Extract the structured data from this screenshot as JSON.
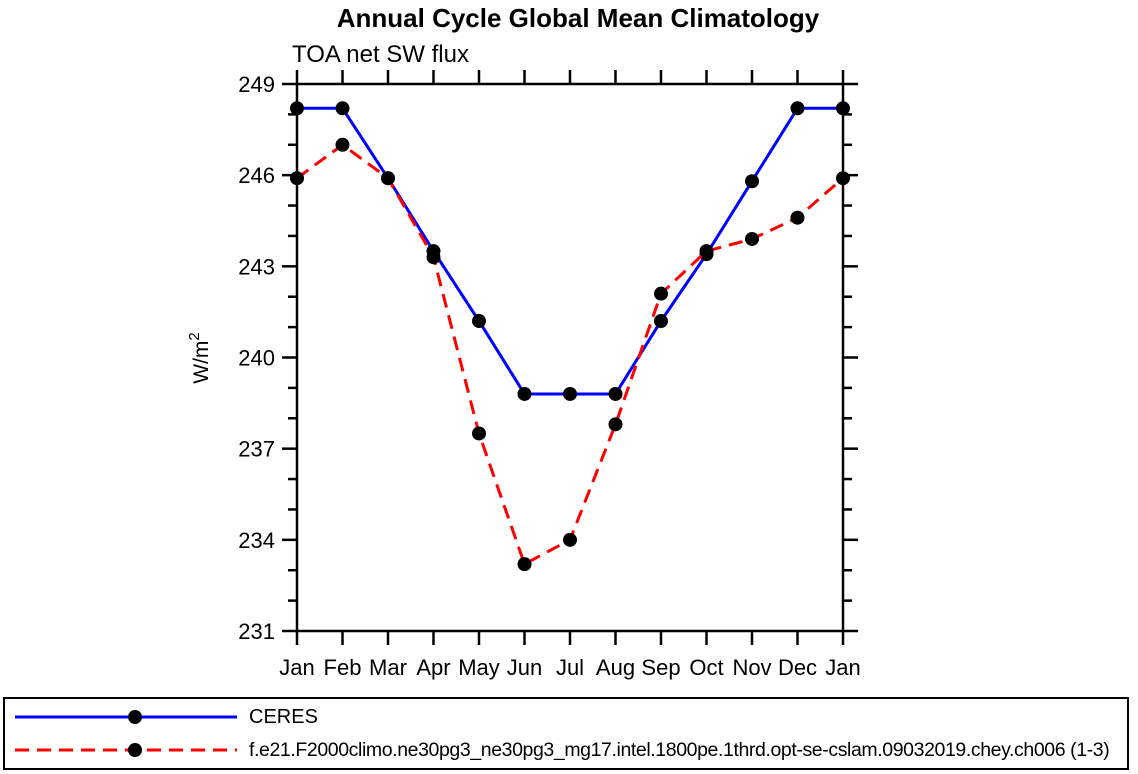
{
  "chart_data": {
    "type": "line",
    "title": "Annual Cycle Global Mean Climatology",
    "subtitle": "TOA net SW flux",
    "ylabel_base": "W/m",
    "ylabel_sup": "2",
    "categories": [
      "Jan",
      "Feb",
      "Mar",
      "Apr",
      "May",
      "Jun",
      "Jul",
      "Aug",
      "Sep",
      "Oct",
      "Nov",
      "Dec",
      "Jan"
    ],
    "ylim": [
      231,
      249
    ],
    "ytick_major_step": 3,
    "ytick_minor_step": 1,
    "ytick_labels": [
      "231",
      "234",
      "237",
      "240",
      "243",
      "246",
      "249"
    ],
    "grid": false,
    "legend_position": "bottom-box",
    "axis_color": "#000000",
    "marker_color": "#000000",
    "background_color": "#ffffff",
    "series": [
      {
        "name": "CERES",
        "color": "#0000ff",
        "line_style": "solid",
        "marker": "filled-circle",
        "values": [
          248.2,
          248.2,
          245.9,
          243.5,
          241.2,
          238.8,
          238.8,
          238.8,
          241.2,
          243.4,
          245.8,
          248.2,
          248.2
        ]
      },
      {
        "name": "f.e21.F2000climo.ne30pg3_ne30pg3_mg17.intel.1800pe.1thrd.opt-se-cslam.09032019.chey.ch006 (1-3)",
        "color": "#ff0000",
        "line_style": "dashed",
        "marker": "filled-circle",
        "values": [
          245.9,
          247.0,
          245.9,
          243.3,
          237.5,
          233.2,
          234.0,
          237.8,
          242.1,
          243.5,
          243.9,
          244.6,
          245.9
        ]
      }
    ]
  }
}
